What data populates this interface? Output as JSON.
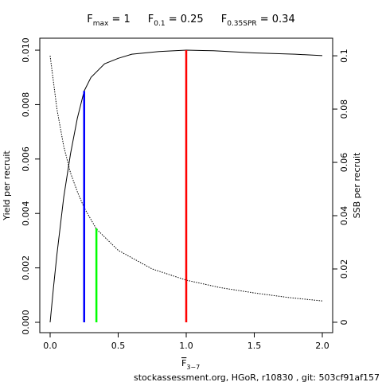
{
  "chart_data": {
    "type": "line",
    "title": [
      {
        "main": "F",
        "sub": "max",
        "rest": " = 1"
      },
      {
        "main": "F",
        "sub": "0.1",
        "rest": " = 0.25"
      },
      {
        "main": "F",
        "sub": "0.35SPR",
        "rest": " = 0.34"
      }
    ],
    "xlabel": {
      "main": "F",
      "sub": "3−7"
    },
    "ylabel": "Yield per recruit",
    "y2label": "SSB per recruit",
    "footer": "stockassessment.org, HGoR, r10830 , git: 503cf91af157",
    "xlim": [
      -0.076,
      2.076
    ],
    "ylim": [
      -0.00038,
      0.01044
    ],
    "y2lim": [
      -0.0039,
      0.1066
    ],
    "xticks": [
      {
        "value": 0,
        "label": "0.0"
      },
      {
        "value": 0.5,
        "label": "0.5"
      },
      {
        "value": 1,
        "label": "1.0"
      },
      {
        "value": 1.5,
        "label": "1.5"
      },
      {
        "value": 2,
        "label": "2.0"
      }
    ],
    "yticks": [
      {
        "value": 0,
        "label": "0.000"
      },
      {
        "value": 0.002,
        "label": "0.002"
      },
      {
        "value": 0.004,
        "label": "0.004"
      },
      {
        "value": 0.006,
        "label": "0.006"
      },
      {
        "value": 0.008,
        "label": "0.008"
      },
      {
        "value": 0.01,
        "label": "0.010"
      }
    ],
    "y2ticks": [
      0,
      0.02,
      0.04,
      0.06,
      0.08,
      0.1
    ],
    "series": [
      {
        "color": "#000000",
        "dash": false,
        "x": [
          0,
          0.025,
          0.05,
          0.1,
          0.15,
          0.2,
          0.25,
          0.3,
          0.4,
          0.5,
          0.6,
          0.8,
          1.0,
          1.2,
          1.5,
          1.8,
          2.0
        ],
        "values": [
          0,
          0.0013,
          0.0025,
          0.0046,
          0.0062,
          0.0075,
          0.0085,
          0.009,
          0.0095,
          0.0097,
          0.00985,
          0.00995,
          0.01,
          0.00998,
          0.0099,
          0.00985,
          0.0098
        ]
      },
      {
        "color": "#000000",
        "dash": true,
        "axis": "y2",
        "x": [
          0,
          0.05,
          0.1,
          0.15,
          0.2,
          0.25,
          0.34,
          0.5,
          0.75,
          1.0,
          1.25,
          1.5,
          1.75,
          2.0
        ],
        "values": [
          0.1,
          0.08,
          0.066,
          0.056,
          0.049,
          0.043,
          0.035,
          0.027,
          0.02,
          0.0158,
          0.013,
          0.011,
          0.0093,
          0.008
        ]
      }
    ],
    "vlines": [
      {
        "x": 0.25,
        "y": 0.0085,
        "color": "#0000ff"
      },
      {
        "x": 0.34,
        "y": 0.00345,
        "color": "#00ff00"
      },
      {
        "x": 1.0,
        "y": 0.01,
        "color": "#ff0000"
      }
    ]
  }
}
